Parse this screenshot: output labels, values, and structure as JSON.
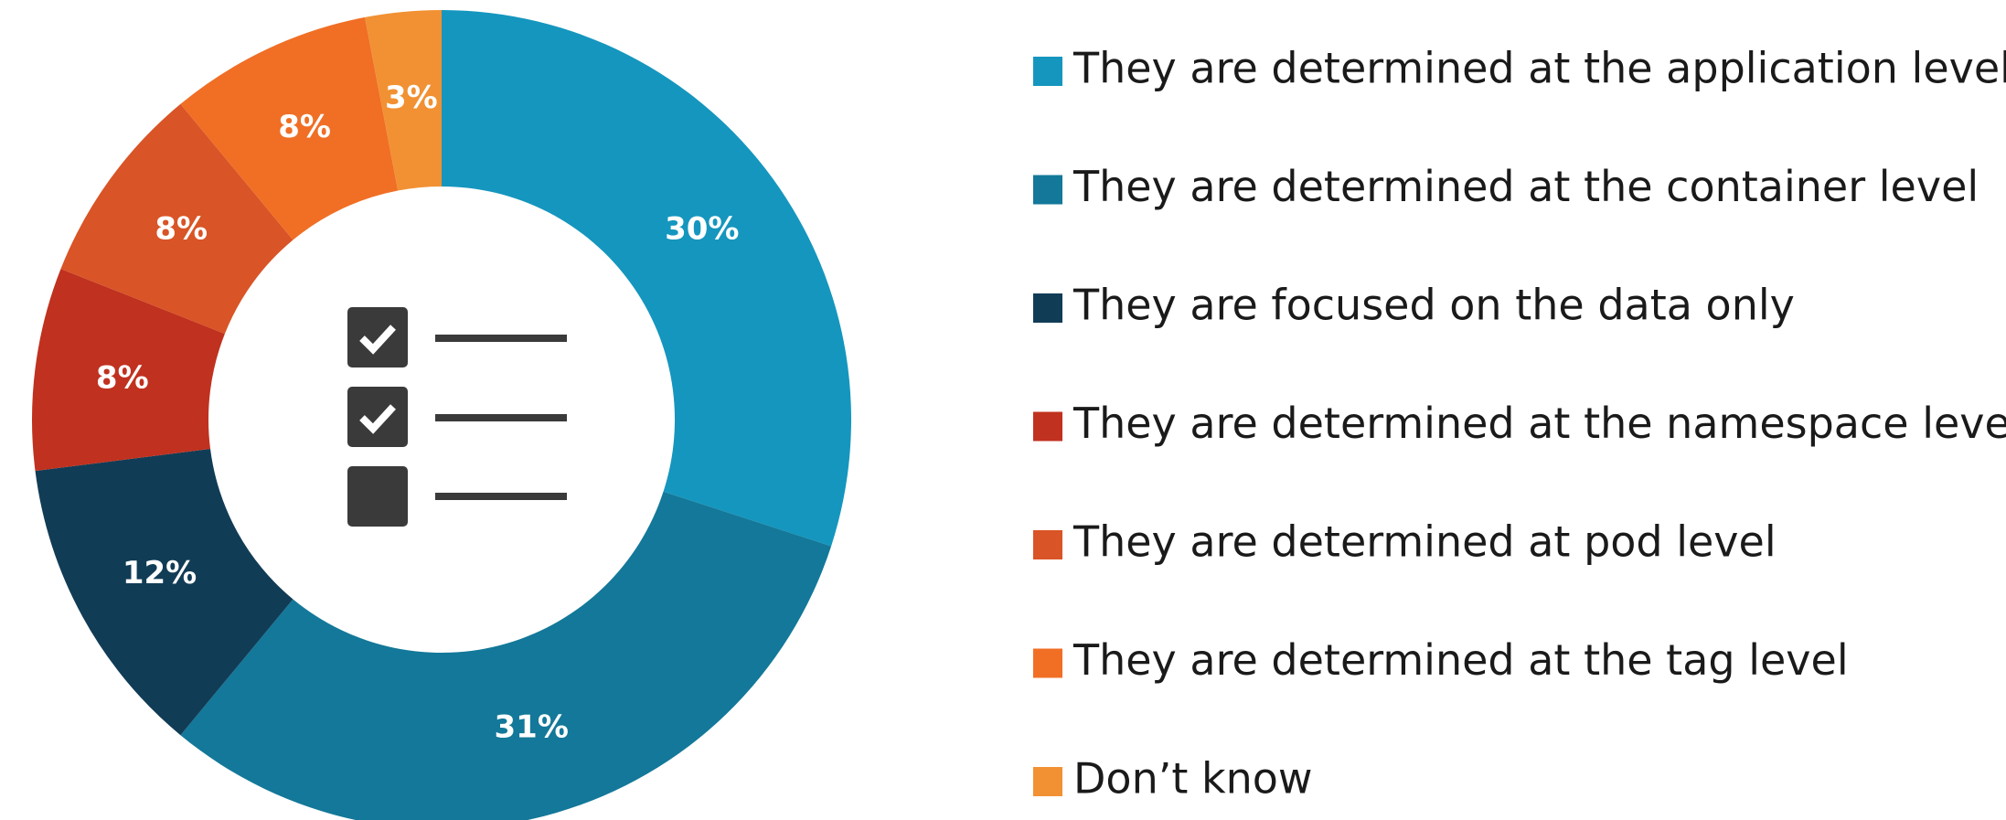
{
  "chart_data": {
    "type": "pie",
    "categories": [
      "They are determined at the application level",
      "They are determined at the container level",
      "They are focused on the data only",
      "They are determined at the namespace level",
      "They are determined at pod level",
      "They are determined at the tag level",
      "Don’t know"
    ],
    "values": [
      30,
      31,
      12,
      8,
      8,
      8,
      3
    ],
    "value_labels": [
      "30%",
      "31%",
      "12%",
      "8%",
      "8%",
      "8%",
      "3%"
    ],
    "colors": [
      "#1596be",
      "#137899",
      "#113c56",
      "#c0311f",
      "#d95426",
      "#f06f25",
      "#f19133"
    ],
    "legend": "right"
  }
}
